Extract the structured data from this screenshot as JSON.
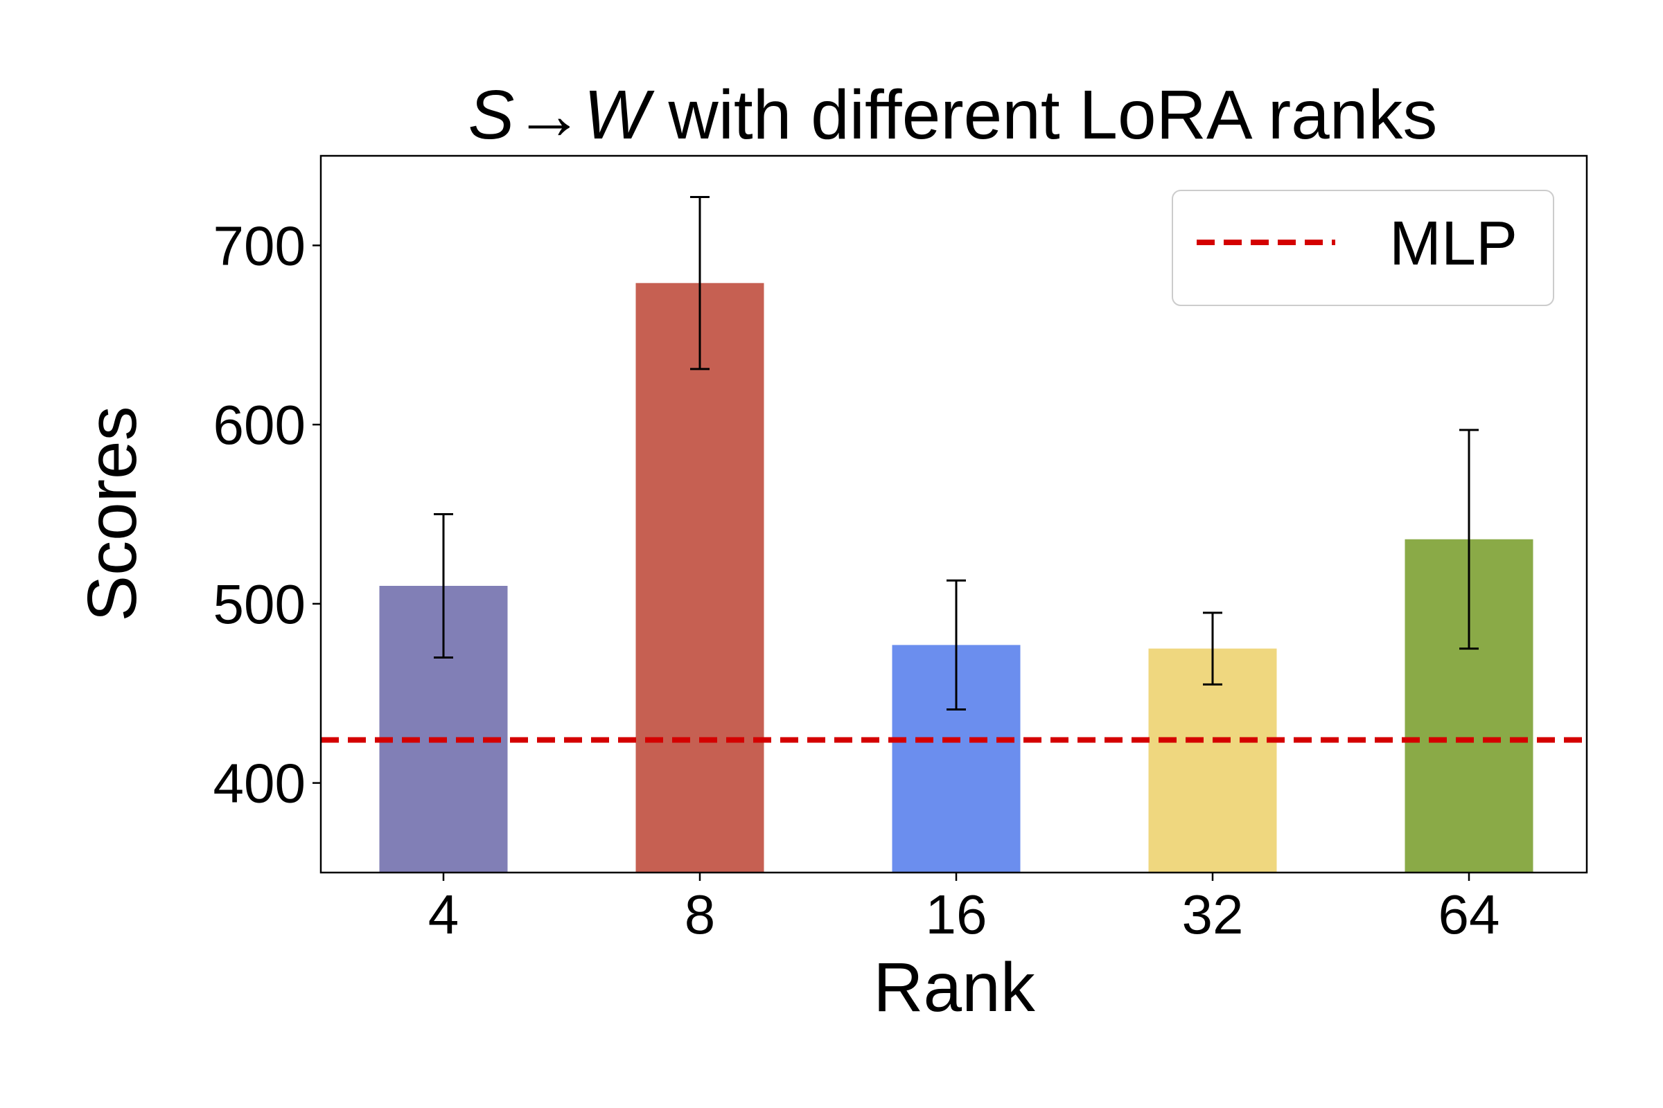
{
  "chart_data": {
    "type": "bar",
    "title_parts": {
      "from": "S",
      "arrow": "→",
      "to": "W",
      "rest": " with different LoRA ranks"
    },
    "xlabel": "Rank",
    "ylabel": "Scores",
    "categories": [
      "4",
      "8",
      "16",
      "32",
      "64"
    ],
    "values": [
      510,
      679,
      477,
      475,
      536
    ],
    "errors": [
      40,
      48,
      36,
      20,
      61
    ],
    "bar_colors": [
      "#817fb6",
      "#c66052",
      "#6b8eee",
      "#efd77f",
      "#8aaa47"
    ],
    "ylim": [
      350,
      750
    ],
    "yticks": [
      400,
      500,
      600,
      700
    ],
    "reference_line": {
      "label": "MLP",
      "value": 424,
      "color": "#d40000",
      "style": "dashed"
    },
    "legend_position": "top-right",
    "grid": false
  }
}
